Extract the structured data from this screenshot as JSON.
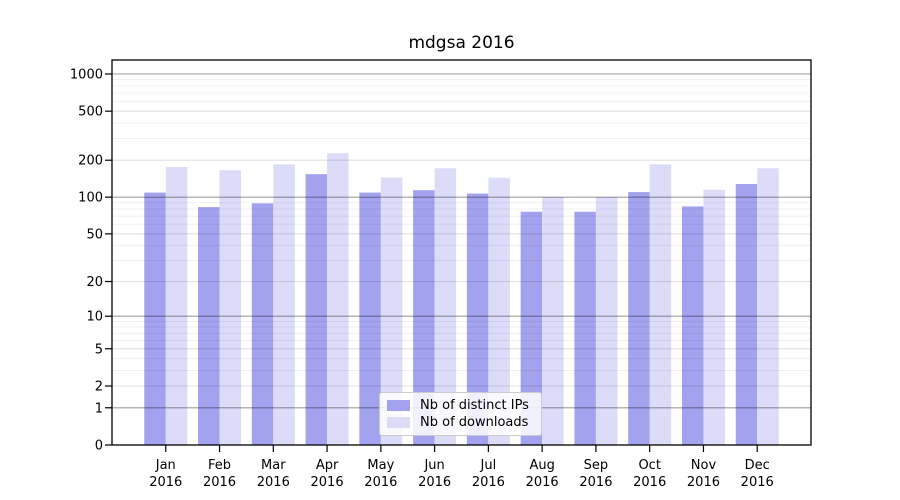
{
  "chart_data": {
    "type": "bar",
    "title": "mdgsa 2016",
    "categories": [
      "Jan",
      "Feb",
      "Mar",
      "Apr",
      "May",
      "Jun",
      "Jul",
      "Aug",
      "Sep",
      "Oct",
      "Nov",
      "Dec"
    ],
    "x_tick_year": "2016",
    "series": [
      {
        "name": "Nb of distinct IPs",
        "color": "#a2a2ef",
        "values": [
          109,
          83,
          89,
          154,
          109,
          114,
          107,
          76,
          76,
          110,
          84,
          128
        ]
      },
      {
        "name": "Nb of downloads",
        "color": "#dcdcf9",
        "values": [
          176,
          166,
          185,
          228,
          145,
          172,
          144,
          100,
          100,
          185,
          115,
          172
        ]
      }
    ],
    "yscale": "log1p",
    "y_ticks": [
      0,
      1,
      2,
      5,
      10,
      20,
      50,
      100,
      200,
      500,
      1000
    ],
    "y_decade_ticks": [
      1,
      10,
      100,
      1000
    ],
    "ylim": [
      0,
      1300
    ],
    "grid": "both",
    "legend_position": "lower-center-inside",
    "bar_layout": {
      "pair": "side-by-side",
      "width_fraction": 0.4
    }
  }
}
